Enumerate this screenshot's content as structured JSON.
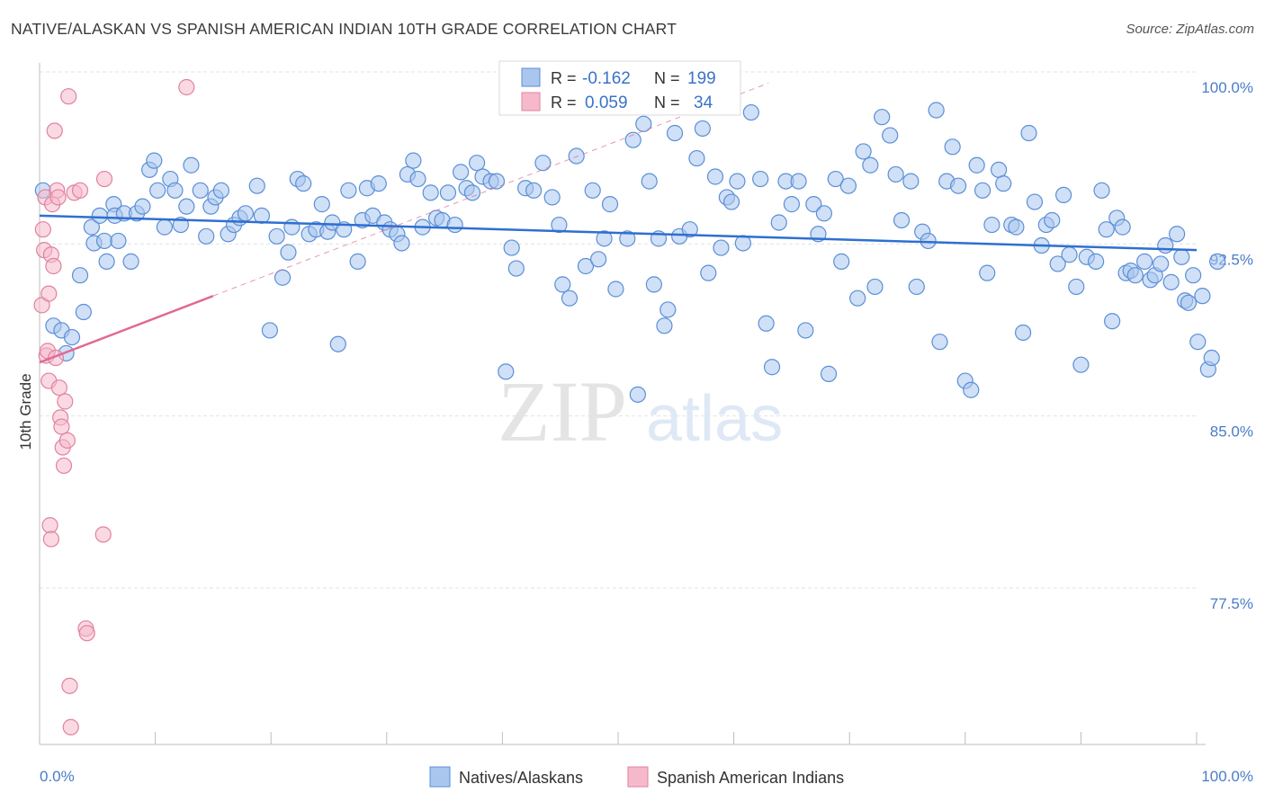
{
  "title": "NATIVE/ALASKAN VS SPANISH AMERICAN INDIAN 10TH GRADE CORRELATION CHART",
  "source": "Source: ZipAtlas.com",
  "watermark": {
    "zip": "ZIP",
    "atlas": "atlas"
  },
  "colors": {
    "blue_fill": "#a9c6ef",
    "blue_stroke": "#5b8fd6",
    "blue_line": "#2f6fd1",
    "pink_fill": "#f6b9cc",
    "pink_stroke": "#e0829f",
    "pink_line": "#e06a93",
    "grid": "#e3e3e3",
    "axis_text": "#4a7cc9"
  },
  "legend": {
    "rows": [
      {
        "r_label": "R =",
        "r_value": "-0.162",
        "n_label": "N =",
        "n_value": "199"
      },
      {
        "r_label": "R =",
        "r_value": "0.059",
        "n_label": "N =",
        "n_value": "34"
      }
    ]
  },
  "chart_data": {
    "type": "scatter",
    "xlabel": "",
    "ylabel": "10th Grade",
    "xlim": [
      0,
      100
    ],
    "ylim": [
      71,
      101.5
    ],
    "x_tick_labels": [
      "0.0%",
      "100.0%"
    ],
    "y_ticks": [
      77.5,
      85.0,
      92.5,
      100.0
    ],
    "y_tick_labels": [
      "77.5%",
      "85.0%",
      "92.5%",
      "100.0%"
    ],
    "grid": true,
    "legend_placement": "top-center",
    "series": [
      {
        "name": "Natives/Alaskans",
        "trend": {
          "x": [
            0,
            100
          ],
          "y": [
            94.4,
            92.9
          ]
        },
        "points": [
          [
            0.3,
            95.5
          ],
          [
            1.2,
            89.6
          ],
          [
            1.9,
            89.4
          ],
          [
            2.3,
            88.4
          ],
          [
            2.8,
            89.1
          ],
          [
            3.5,
            91.8
          ],
          [
            3.8,
            90.2
          ],
          [
            4.5,
            93.9
          ],
          [
            4.7,
            93.2
          ],
          [
            5.2,
            94.4
          ],
          [
            5.6,
            93.3
          ],
          [
            5.8,
            92.4
          ],
          [
            6.4,
            94.9
          ],
          [
            6.5,
            94.4
          ],
          [
            6.8,
            93.3
          ],
          [
            7.3,
            94.5
          ],
          [
            7.9,
            92.4
          ],
          [
            8.4,
            94.5
          ],
          [
            8.9,
            94.8
          ],
          [
            9.5,
            96.4
          ],
          [
            9.9,
            96.8
          ],
          [
            10.2,
            95.5
          ],
          [
            10.8,
            93.9
          ],
          [
            11.3,
            96.0
          ],
          [
            11.7,
            95.5
          ],
          [
            12.2,
            94.0
          ],
          [
            12.7,
            94.8
          ],
          [
            13.1,
            96.6
          ],
          [
            13.9,
            95.5
          ],
          [
            14.4,
            93.5
          ],
          [
            14.8,
            94.8
          ],
          [
            15.2,
            95.2
          ],
          [
            15.7,
            95.5
          ],
          [
            16.3,
            93.6
          ],
          [
            16.8,
            94.0
          ],
          [
            17.3,
            94.3
          ],
          [
            17.8,
            94.5
          ],
          [
            18.8,
            95.7
          ],
          [
            19.2,
            94.4
          ],
          [
            19.9,
            89.4
          ],
          [
            20.5,
            93.5
          ],
          [
            21.0,
            91.7
          ],
          [
            21.5,
            92.8
          ],
          [
            21.8,
            93.9
          ],
          [
            22.3,
            96.0
          ],
          [
            22.8,
            95.8
          ],
          [
            23.3,
            93.6
          ],
          [
            23.9,
            93.8
          ],
          [
            24.4,
            94.9
          ],
          [
            24.9,
            93.7
          ],
          [
            25.3,
            94.1
          ],
          [
            25.8,
            88.8
          ],
          [
            26.3,
            93.8
          ],
          [
            26.7,
            95.5
          ],
          [
            27.5,
            92.4
          ],
          [
            27.9,
            94.2
          ],
          [
            28.3,
            95.6
          ],
          [
            28.8,
            94.4
          ],
          [
            29.3,
            95.8
          ],
          [
            29.8,
            94.1
          ],
          [
            30.3,
            93.8
          ],
          [
            30.9,
            93.6
          ],
          [
            31.3,
            93.2
          ],
          [
            31.8,
            96.2
          ],
          [
            32.3,
            96.8
          ],
          [
            32.7,
            96.0
          ],
          [
            33.1,
            93.9
          ],
          [
            33.8,
            95.4
          ],
          [
            34.3,
            94.3
          ],
          [
            34.8,
            94.2
          ],
          [
            35.3,
            95.4
          ],
          [
            35.9,
            94.0
          ],
          [
            36.4,
            96.3
          ],
          [
            36.9,
            95.6
          ],
          [
            37.4,
            95.4
          ],
          [
            37.8,
            96.7
          ],
          [
            38.3,
            96.1
          ],
          [
            39.0,
            95.9
          ],
          [
            39.5,
            95.9
          ],
          [
            40.3,
            87.6
          ],
          [
            40.8,
            93.0
          ],
          [
            41.2,
            92.1
          ],
          [
            42.0,
            95.6
          ],
          [
            42.7,
            95.5
          ],
          [
            43.5,
            96.7
          ],
          [
            44.3,
            95.2
          ],
          [
            44.9,
            94.0
          ],
          [
            45.2,
            91.4
          ],
          [
            45.8,
            90.8
          ],
          [
            46.4,
            97.0
          ],
          [
            47.2,
            92.2
          ],
          [
            47.8,
            95.5
          ],
          [
            48.3,
            92.5
          ],
          [
            48.8,
            93.4
          ],
          [
            49.3,
            94.9
          ],
          [
            49.8,
            91.2
          ],
          [
            50.8,
            93.4
          ],
          [
            51.3,
            97.7
          ],
          [
            51.7,
            86.6
          ],
          [
            52.2,
            98.4
          ],
          [
            52.7,
            95.9
          ],
          [
            53.1,
            91.4
          ],
          [
            53.5,
            93.4
          ],
          [
            54.0,
            89.6
          ],
          [
            54.3,
            90.3
          ],
          [
            54.9,
            98.0
          ],
          [
            55.3,
            93.5
          ],
          [
            56.2,
            93.8
          ],
          [
            56.8,
            96.9
          ],
          [
            57.3,
            98.2
          ],
          [
            57.8,
            91.9
          ],
          [
            58.4,
            96.1
          ],
          [
            58.9,
            93.0
          ],
          [
            59.4,
            95.2
          ],
          [
            59.8,
            95.0
          ],
          [
            60.3,
            95.9
          ],
          [
            60.8,
            93.2
          ],
          [
            61.5,
            98.9
          ],
          [
            62.3,
            96.0
          ],
          [
            62.8,
            89.7
          ],
          [
            63.3,
            87.8
          ],
          [
            63.9,
            94.1
          ],
          [
            64.5,
            95.9
          ],
          [
            65.0,
            94.9
          ],
          [
            65.6,
            95.9
          ],
          [
            66.2,
            89.4
          ],
          [
            66.9,
            94.9
          ],
          [
            67.3,
            93.6
          ],
          [
            67.8,
            94.5
          ],
          [
            68.2,
            87.5
          ],
          [
            68.8,
            96.0
          ],
          [
            69.3,
            92.4
          ],
          [
            69.9,
            95.7
          ],
          [
            70.7,
            90.8
          ],
          [
            71.2,
            97.2
          ],
          [
            71.8,
            96.6
          ],
          [
            72.2,
            91.3
          ],
          [
            72.8,
            98.7
          ],
          [
            73.5,
            97.9
          ],
          [
            74.0,
            96.2
          ],
          [
            74.5,
            94.2
          ],
          [
            75.3,
            95.9
          ],
          [
            75.8,
            91.3
          ],
          [
            76.3,
            93.7
          ],
          [
            76.8,
            93.3
          ],
          [
            77.5,
            99.0
          ],
          [
            77.8,
            88.9
          ],
          [
            78.4,
            95.9
          ],
          [
            78.9,
            97.4
          ],
          [
            79.4,
            95.7
          ],
          [
            80.0,
            87.2
          ],
          [
            80.5,
            86.8
          ],
          [
            81.0,
            96.6
          ],
          [
            81.5,
            95.5
          ],
          [
            81.9,
            91.9
          ],
          [
            82.3,
            94.0
          ],
          [
            82.9,
            96.4
          ],
          [
            83.3,
            95.8
          ],
          [
            84.0,
            94.0
          ],
          [
            84.4,
            93.9
          ],
          [
            85.0,
            89.3
          ],
          [
            85.5,
            98.0
          ],
          [
            86.0,
            95.0
          ],
          [
            86.6,
            93.1
          ],
          [
            87.0,
            94.0
          ],
          [
            87.5,
            94.2
          ],
          [
            88.0,
            92.3
          ],
          [
            88.5,
            95.3
          ],
          [
            89.0,
            92.7
          ],
          [
            89.6,
            91.3
          ],
          [
            90.0,
            87.9
          ],
          [
            90.5,
            92.6
          ],
          [
            91.3,
            92.4
          ],
          [
            91.8,
            95.5
          ],
          [
            92.2,
            93.8
          ],
          [
            92.7,
            89.8
          ],
          [
            93.1,
            94.3
          ],
          [
            93.6,
            93.9
          ],
          [
            93.9,
            91.9
          ],
          [
            94.3,
            92.0
          ],
          [
            94.7,
            91.8
          ],
          [
            95.5,
            92.4
          ],
          [
            96.0,
            91.6
          ],
          [
            96.4,
            91.8
          ],
          [
            96.9,
            92.3
          ],
          [
            97.3,
            93.1
          ],
          [
            97.8,
            91.5
          ],
          [
            98.3,
            93.6
          ],
          [
            98.7,
            92.6
          ],
          [
            99.0,
            90.7
          ],
          [
            99.3,
            90.6
          ],
          [
            99.7,
            91.8
          ],
          [
            100.1,
            88.9
          ],
          [
            100.5,
            90.9
          ],
          [
            101.0,
            87.7
          ],
          [
            101.3,
            88.2
          ],
          [
            101.8,
            92.4
          ]
        ]
      },
      {
        "name": "Spanish American Indians",
        "trend": {
          "x": [
            0,
            15
          ],
          "y": [
            88.0,
            90.9
          ]
        },
        "points": [
          [
            0.2,
            90.5
          ],
          [
            0.3,
            93.8
          ],
          [
            0.4,
            92.9
          ],
          [
            0.5,
            95.2
          ],
          [
            0.6,
            88.3
          ],
          [
            0.7,
            88.5
          ],
          [
            0.8,
            87.2
          ],
          [
            0.9,
            80.9
          ],
          [
            1.0,
            80.3
          ],
          [
            0.8,
            91.0
          ],
          [
            1.0,
            92.7
          ],
          [
            1.1,
            94.9
          ],
          [
            1.2,
            92.2
          ],
          [
            1.3,
            98.1
          ],
          [
            1.4,
            88.2
          ],
          [
            1.5,
            95.5
          ],
          [
            1.6,
            95.2
          ],
          [
            1.7,
            86.9
          ],
          [
            1.8,
            85.6
          ],
          [
            1.9,
            85.2
          ],
          [
            2.0,
            84.3
          ],
          [
            2.1,
            83.5
          ],
          [
            2.2,
            86.3
          ],
          [
            2.4,
            84.6
          ],
          [
            2.5,
            99.6
          ],
          [
            2.6,
            73.9
          ],
          [
            2.7,
            72.1
          ],
          [
            3.0,
            95.4
          ],
          [
            3.5,
            95.5
          ],
          [
            4.0,
            76.4
          ],
          [
            4.1,
            76.2
          ],
          [
            5.5,
            80.5
          ],
          [
            5.6,
            96.0
          ],
          [
            12.7,
            100.0
          ]
        ]
      }
    ]
  },
  "bottom_legend": [
    {
      "label": "Natives/Alaskans"
    },
    {
      "label": "Spanish American Indians"
    }
  ]
}
